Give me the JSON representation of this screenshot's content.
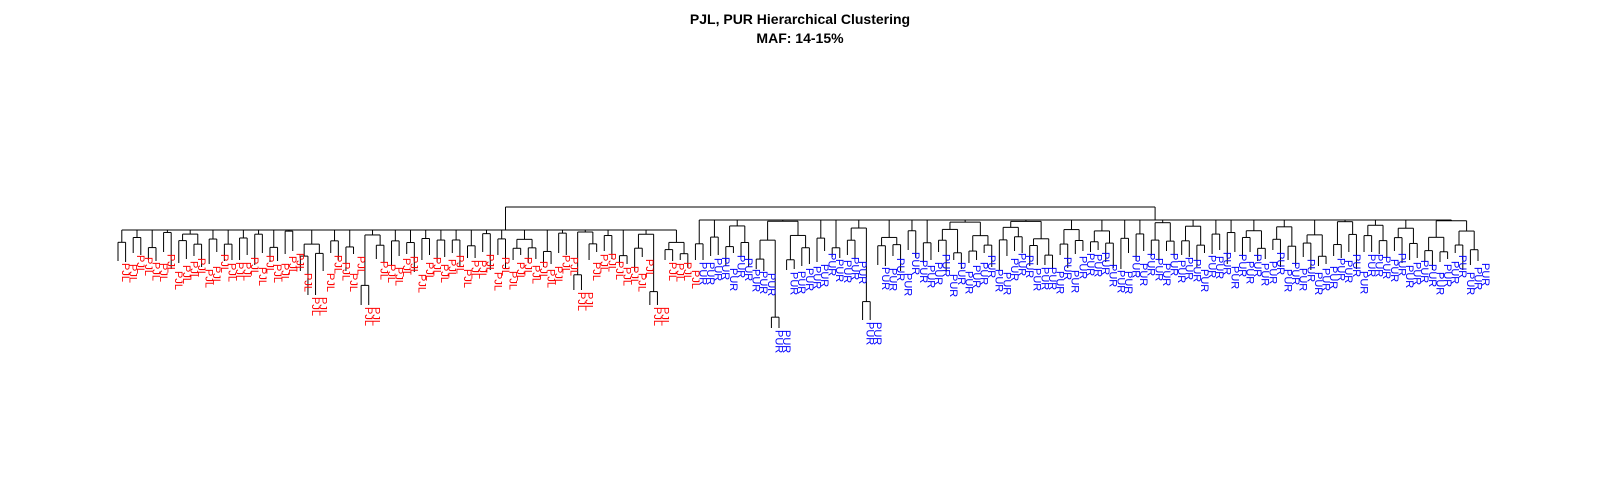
{
  "title": "PJL, PUR Hierarchical Clustering",
  "subtitle": "MAF: 14-15%",
  "colors": {
    "PJL": "#ff0000",
    "PUR": "#0000ff",
    "line": "#000000"
  },
  "leaf_groups": [
    {
      "label": "PJL",
      "count": 76
    },
    {
      "label": "PUR",
      "count": 104
    }
  ]
}
